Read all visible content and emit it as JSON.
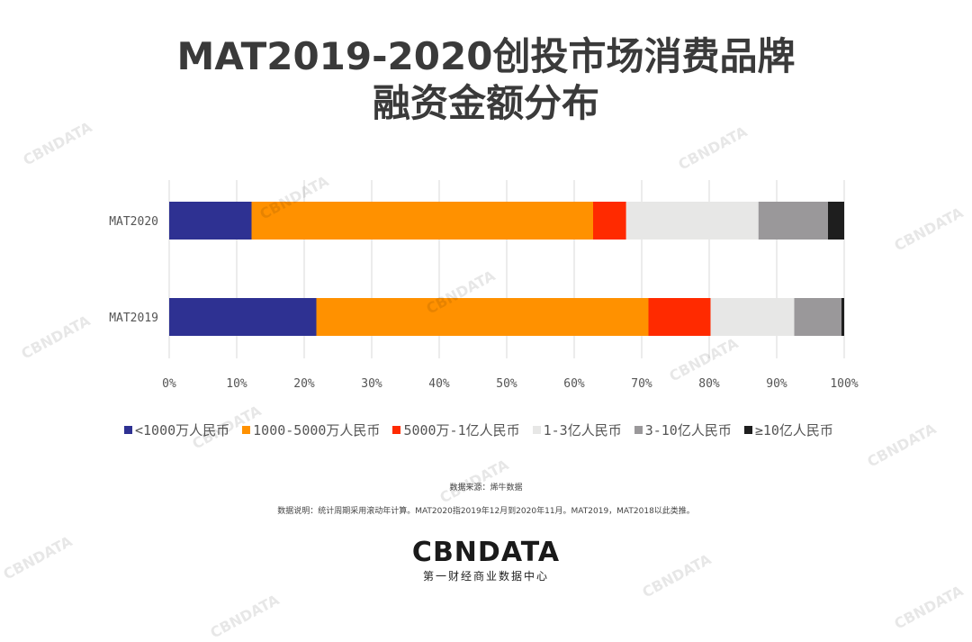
{
  "title_line1": "MAT2019-2020创投市场消费品牌",
  "title_line2": "融资金额分布",
  "chart_data": {
    "type": "bar",
    "orientation": "horizontal",
    "stacked": true,
    "categories": [
      "MAT2020",
      "MAT2019"
    ],
    "series": [
      {
        "name": "<1000万人民币",
        "color": "#2e3192",
        "values": [
          12.2,
          21.8
        ]
      },
      {
        "name": "1000-5000万人民币",
        "color": "#ff9100",
        "values": [
          50.6,
          49.2
        ]
      },
      {
        "name": "5000万-1亿人民币",
        "color": "#ff2a00",
        "values": [
          4.9,
          9.2
        ]
      },
      {
        "name": "1-3亿人民币",
        "color": "#e7e7e6",
        "values": [
          19.6,
          12.4
        ]
      },
      {
        "name": "3-10亿人民币",
        "color": "#9a989a",
        "values": [
          10.3,
          7.0
        ]
      },
      {
        "name": "≥10亿人民币",
        "color": "#1e1e1e",
        "values": [
          2.4,
          0.4
        ]
      }
    ],
    "x_ticks": [
      "0%",
      "10%",
      "20%",
      "30%",
      "40%",
      "50%",
      "60%",
      "70%",
      "80%",
      "90%",
      "100%"
    ],
    "xlim": [
      0,
      100
    ],
    "grid": true,
    "legend_position": "bottom"
  },
  "source": "数据来源：烯牛数据",
  "note": "数据说明：统计周期采用滚动年计算。MAT2020指2019年12月到2020年11月。MAT2019，MAT2018以此类推。",
  "logo": {
    "name": "CBNDATA",
    "subtitle": "第一财经商业数据中心"
  },
  "watermark_text": "CBNDATA"
}
